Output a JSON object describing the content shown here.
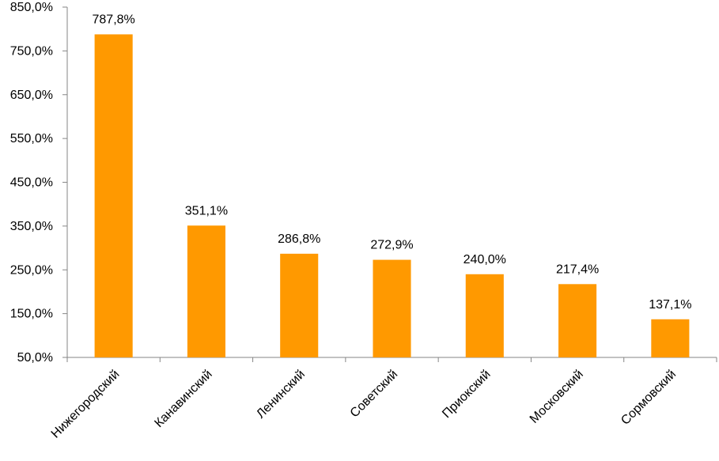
{
  "chart_data": {
    "type": "bar",
    "title": "",
    "xlabel": "",
    "ylabel": "",
    "categories": [
      "Нижегородский",
      "Канавинский",
      "Ленинский",
      "Советский",
      "Приокский",
      "Московский",
      "Сормовский"
    ],
    "values": [
      787.8,
      351.1,
      286.8,
      272.9,
      240.0,
      217.4,
      137.1
    ],
    "value_labels": [
      "787,8%",
      "351,1%",
      "286,8%",
      "272,9%",
      "240,0%",
      "217,4%",
      "137,1%"
    ],
    "ylim": [
      50,
      850
    ],
    "yticks": [
      50,
      150,
      250,
      350,
      450,
      550,
      650,
      750,
      850
    ],
    "ytick_labels": [
      "50,0%",
      "150,0%",
      "250,0%",
      "350,0%",
      "450,0%",
      "550,0%",
      "650,0%",
      "750,0%",
      "850,0%"
    ],
    "grid": false,
    "legend": "none",
    "bar_color": "#FF9900"
  }
}
